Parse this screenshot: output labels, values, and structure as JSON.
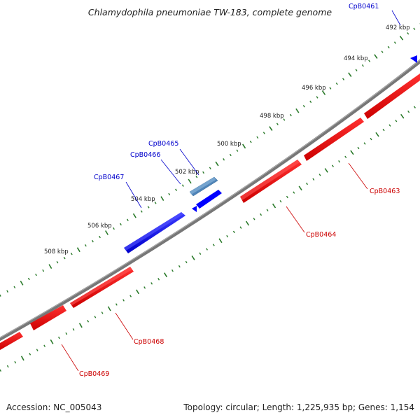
{
  "title": "Chlamydophila pneumoniae TW-183, complete genome",
  "footer": {
    "accession": "Accession: NC_005043",
    "summary": "Topology: circular; Length: 1,225,935 bp; Genes: 1,154"
  },
  "scale_labels": [
    "492 kbp",
    "494 kbp",
    "496 kbp",
    "498 kbp",
    "500 kbp",
    "502 kbp",
    "504 kbp",
    "506 kbp",
    "508 kbp"
  ],
  "genes": [
    {
      "name": "CpB0461",
      "strand": "forward",
      "color": "#0000cc"
    },
    {
      "name": "CpB0463",
      "strand": "reverse",
      "color": "#cc0000"
    },
    {
      "name": "CpB0464",
      "strand": "reverse",
      "color": "#cc0000"
    },
    {
      "name": "CpB0465",
      "strand": "forward",
      "color": "#0000cc"
    },
    {
      "name": "CpB0466",
      "strand": "forward",
      "color": "#0000cc"
    },
    {
      "name": "CpB0467",
      "strand": "forward",
      "color": "#0000cc"
    },
    {
      "name": "CpB0468",
      "strand": "reverse",
      "color": "#cc0000"
    },
    {
      "name": "CpB0469",
      "strand": "reverse",
      "color": "#cc0000"
    }
  ],
  "colors": {
    "forward_gene": "#0000ff",
    "forward_gene_highlight": "#4f84b8",
    "reverse_gene": "#ff0000",
    "backbone": "#777777",
    "ticks": "#2a7a2a"
  }
}
